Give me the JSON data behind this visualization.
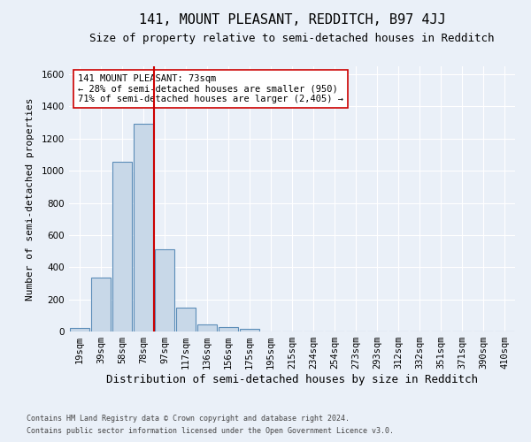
{
  "title": "141, MOUNT PLEASANT, REDDITCH, B97 4JJ",
  "subtitle": "Size of property relative to semi-detached houses in Redditch",
  "xlabel": "Distribution of semi-detached houses by size in Redditch",
  "ylabel": "Number of semi-detached properties",
  "footnote1": "Contains HM Land Registry data © Crown copyright and database right 2024.",
  "footnote2": "Contains public sector information licensed under the Open Government Licence v3.0.",
  "bar_labels": [
    "19sqm",
    "39sqm",
    "58sqm",
    "78sqm",
    "97sqm",
    "117sqm",
    "136sqm",
    "156sqm",
    "175sqm",
    "195sqm",
    "215sqm",
    "234sqm",
    "254sqm",
    "273sqm",
    "293sqm",
    "312sqm",
    "332sqm",
    "351sqm",
    "371sqm",
    "390sqm",
    "410sqm"
  ],
  "bar_values": [
    20,
    335,
    1055,
    1295,
    510,
    150,
    45,
    25,
    15,
    0,
    0,
    0,
    0,
    0,
    0,
    0,
    0,
    0,
    0,
    0,
    0
  ],
  "bar_color": "#c8d8e8",
  "bar_edge_color": "#5b8db8",
  "vline_color": "#cc0000",
  "annotation_text": "141 MOUNT PLEASANT: 73sqm\n← 28% of semi-detached houses are smaller (950)\n71% of semi-detached houses are larger (2,405) →",
  "annotation_box_color": "#ffffff",
  "annotation_box_edge": "#cc0000",
  "ylim": [
    0,
    1650
  ],
  "yticks": [
    0,
    200,
    400,
    600,
    800,
    1000,
    1200,
    1400,
    1600
  ],
  "background_color": "#eaf0f8",
  "plot_background": "#eaf0f8",
  "title_fontsize": 11,
  "subtitle_fontsize": 9,
  "xlabel_fontsize": 9,
  "ylabel_fontsize": 8,
  "tick_fontsize": 7.5,
  "annotation_fontsize": 7.5,
  "footnote_fontsize": 6
}
